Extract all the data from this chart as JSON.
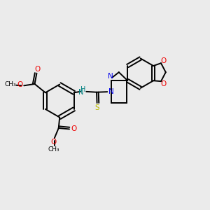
{
  "background_color": "#ebebeb",
  "figsize": [
    3.0,
    3.0
  ],
  "dpi": 100,
  "atom_colors": {
    "N": "#0000ee",
    "O": "#ee0000",
    "S": "#bbbb00",
    "H": "#008080",
    "C": "#000000"
  }
}
